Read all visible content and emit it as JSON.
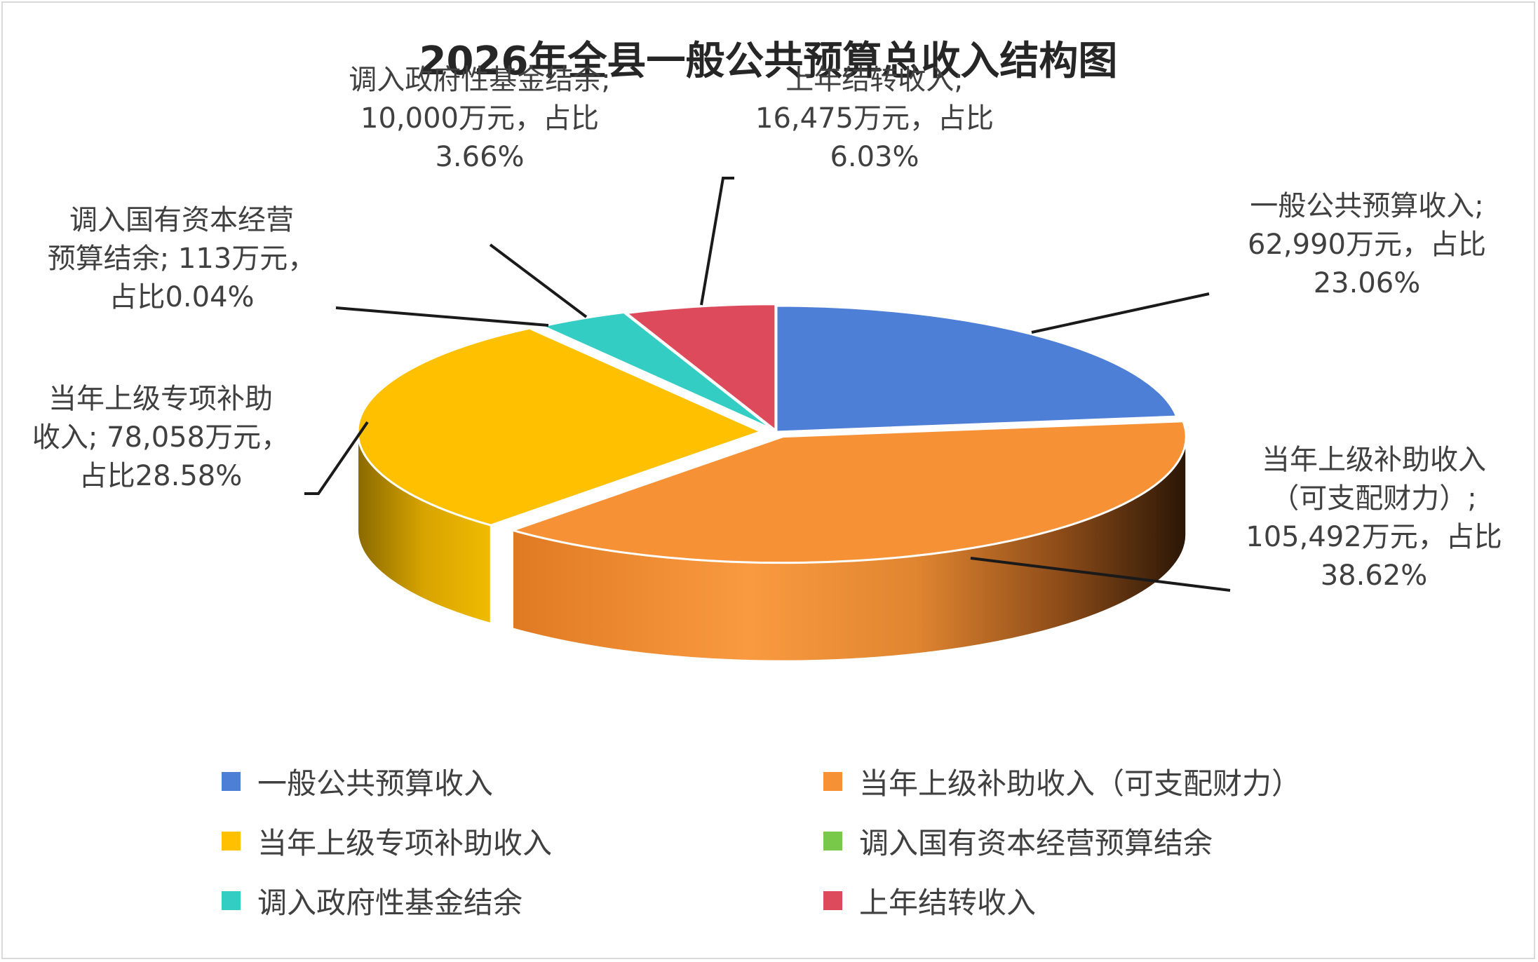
{
  "chart_data": {
    "type": "pie",
    "title": "2026年全县一般公共预算总收入结构图",
    "slices": [
      {
        "name": "一般公共预算收入",
        "value": 62990,
        "percent": 23.06,
        "color": "#4e7fd6",
        "label_lines": [
          "一般公共预算收入;",
          "62,990万元，占比",
          "23.06%"
        ]
      },
      {
        "name": "当年上级补助收入（可支配财力）",
        "value": 105492,
        "percent": 38.62,
        "color": "#f79136",
        "label_lines": [
          "当年上级补助收入",
          "（可支配财力）;",
          "105,492万元，占比",
          "38.62%"
        ]
      },
      {
        "name": "当年上级专项补助收入",
        "value": 78058,
        "percent": 28.58,
        "color": "#ffc000",
        "label_lines": [
          "当年上级专项补助",
          "收入; 78,058万元，",
          "占比28.58%"
        ]
      },
      {
        "name": "调入国有资本经营预算结余",
        "value": 113,
        "percent": 0.04,
        "color": "#78c84a",
        "label_lines": [
          "调入国有资本经营",
          "预算结余; 113万元，",
          "占比0.04%"
        ]
      },
      {
        "name": "调入政府性基金结余",
        "value": 10000,
        "percent": 3.66,
        "color": "#34cdc3",
        "label_lines": [
          "调入政府性基金结余;",
          "10,000万元，占比",
          "3.66%"
        ]
      },
      {
        "name": "上年结转收入",
        "value": 16475,
        "percent": 6.03,
        "color": "#dc4a5c",
        "label_lines": [
          "上年结转收入;",
          "16,475万元，占比",
          "6.03%"
        ]
      }
    ],
    "legend": [
      "一般公共预算收入",
      "当年上级补助收入（可支配财力）",
      "当年上级专项补助收入",
      "调入国有资本经营预算结余",
      "调入政府性基金结余",
      "上年结转收入"
    ],
    "legend_position": "bottom",
    "style": "3d-exploded-pie"
  }
}
